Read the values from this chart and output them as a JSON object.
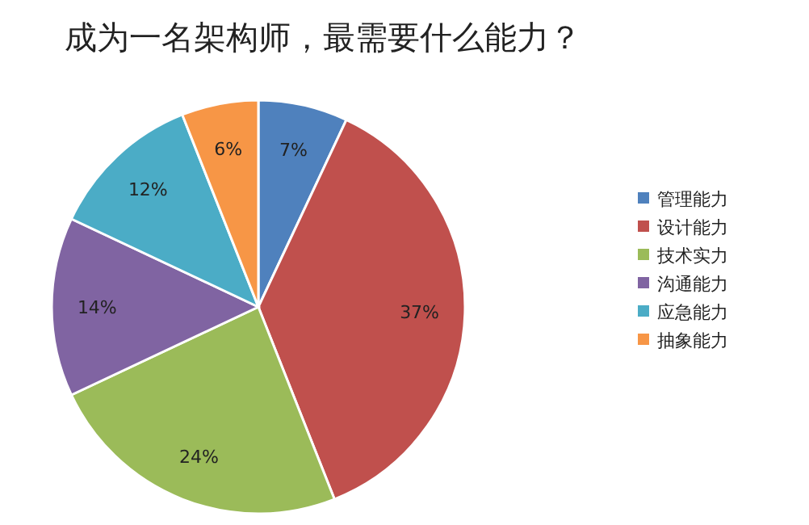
{
  "chart_data": {
    "type": "pie",
    "title": "成为一名架构师，最需要什么能力？",
    "categories": [
      "管理能力",
      "设计能力",
      "技术实力",
      "沟通能力",
      "应急能力",
      "抽象能力"
    ],
    "values": [
      7,
      37,
      24,
      14,
      12,
      6
    ],
    "colors": [
      "#4f81bd",
      "#c0504d",
      "#9bbb59",
      "#8064a2",
      "#4bacc6",
      "#f79646"
    ],
    "value_labels": [
      "7%",
      "37%",
      "24%",
      "14%",
      "12%",
      "6%"
    ],
    "legend": "right"
  }
}
